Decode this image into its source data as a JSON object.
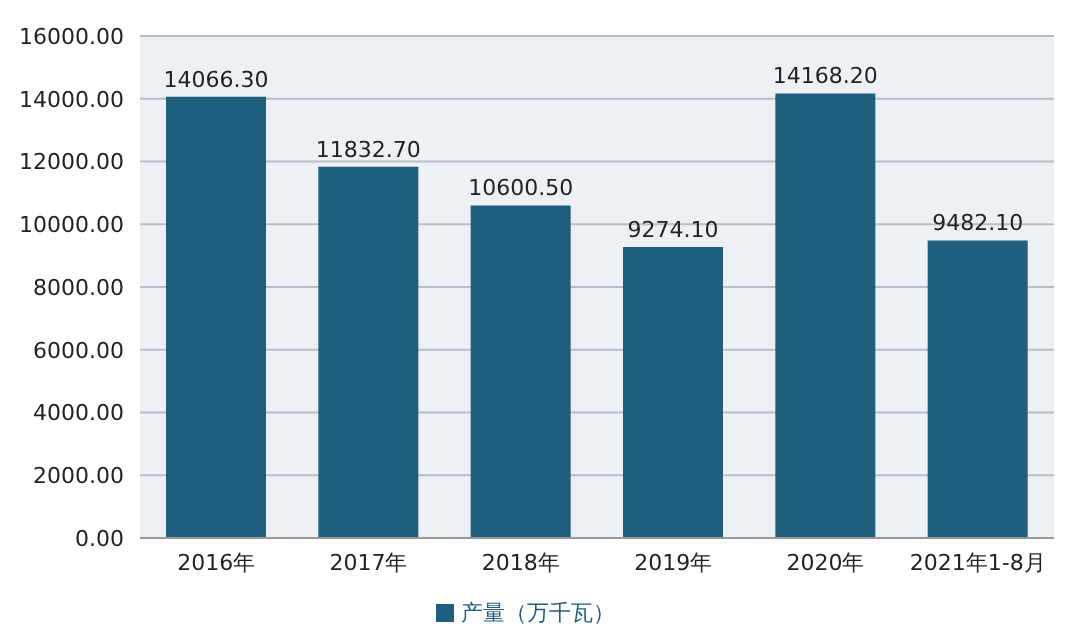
{
  "chart_data": {
    "type": "bar",
    "categories": [
      "2016年",
      "2017年",
      "2018年",
      "2019年",
      "2020年",
      "2021年1-8月"
    ],
    "series": [
      {
        "name": "产量（万千瓦）",
        "color": "#1f5f7e",
        "values": [
          14066.3,
          11832.7,
          10600.5,
          9274.1,
          14168.2,
          9482.1
        ],
        "value_labels": [
          "14066.30",
          "11832.70",
          "10600.50",
          "9274.10",
          "14168.20",
          "9482.10"
        ]
      }
    ],
    "ylim": [
      0,
      16000
    ],
    "yticks": [
      {
        "value": 0,
        "label": "0.00"
      },
      {
        "value": 2000,
        "label": "2000.00"
      },
      {
        "value": 4000,
        "label": "4000.00"
      },
      {
        "value": 6000,
        "label": "6000.00"
      },
      {
        "value": 8000,
        "label": "8000.00"
      },
      {
        "value": 10000,
        "label": "10000.00"
      },
      {
        "value": 12000,
        "label": "12000.00"
      },
      {
        "value": 14000,
        "label": "14000.00"
      },
      {
        "value": 16000,
        "label": "16000.00"
      }
    ],
    "grid": "y",
    "legend": "bottom"
  }
}
